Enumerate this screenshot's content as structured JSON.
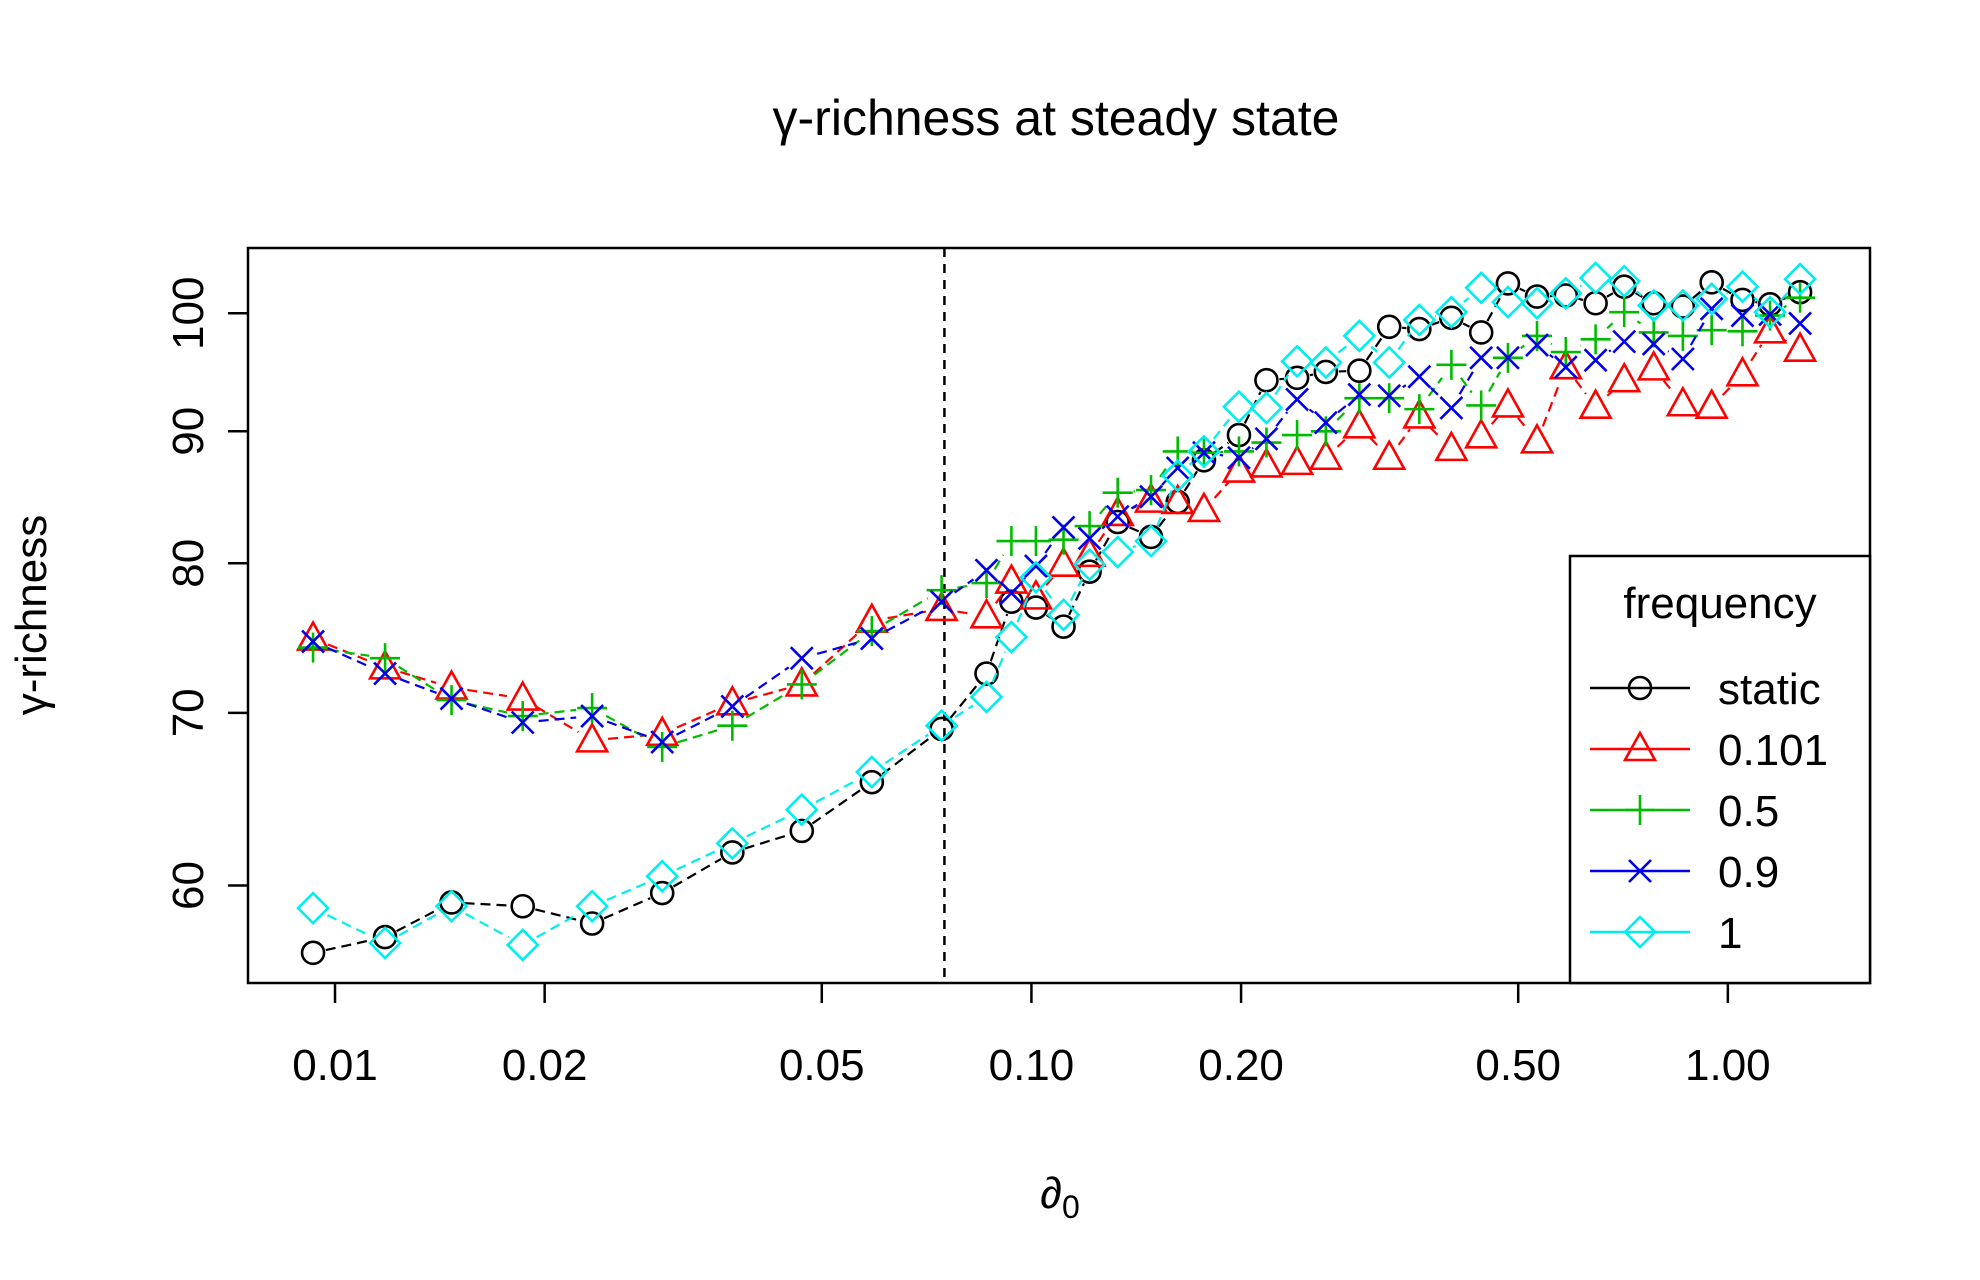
{
  "chart_data": {
    "type": "scatter",
    "title": "γ-richness at steady state",
    "xlabel": "∂",
    "xlabel_sub": "0",
    "ylabel": "γ-richness",
    "x_scale": "log",
    "y_scale": "log",
    "xlim": [
      0.0075,
      1.6
    ],
    "ylim": [
      55,
      106
    ],
    "x_ticks": [
      {
        "v": 0.01,
        "label": "0.01"
      },
      {
        "v": 0.02,
        "label": "0.02"
      },
      {
        "v": 0.05,
        "label": "0.05"
      },
      {
        "v": 0.1,
        "label": "0.10"
      },
      {
        "v": 0.2,
        "label": "0.20"
      },
      {
        "v": 0.5,
        "label": "0.50"
      },
      {
        "v": 1.0,
        "label": "1.00"
      }
    ],
    "y_ticks": [
      {
        "v": 60,
        "label": "60"
      },
      {
        "v": 70,
        "label": "70"
      },
      {
        "v": 80,
        "label": "80"
      },
      {
        "v": 90,
        "label": "90"
      },
      {
        "v": 100,
        "label": "100"
      }
    ],
    "vline_x": 0.075,
    "legend": {
      "title": "frequency",
      "position": "bottom-right"
    },
    "series": [
      {
        "name": "static",
        "color": "#000000",
        "marker": "circle",
        "points": [
          [
            0.0093,
            56.5
          ],
          [
            0.0118,
            57.3
          ],
          [
            0.0147,
            59.1
          ],
          [
            0.0186,
            58.9
          ],
          [
            0.0234,
            58.0
          ],
          [
            0.0295,
            59.6
          ],
          [
            0.0372,
            61.8
          ],
          [
            0.0468,
            63.0
          ],
          [
            0.059,
            65.8
          ],
          [
            0.0743,
            69.0
          ],
          [
            0.0862,
            72.5
          ],
          [
            0.0936,
            77.3
          ],
          [
            0.1015,
            76.9
          ],
          [
            0.1112,
            75.6
          ],
          [
            0.1212,
            79.4
          ],
          [
            0.133,
            83.0
          ],
          [
            0.1485,
            81.9
          ],
          [
            0.1622,
            84.5
          ],
          [
            0.1769,
            87.7
          ],
          [
            0.1986,
            89.7
          ],
          [
            0.2175,
            94.2
          ],
          [
            0.2407,
            94.4
          ],
          [
            0.2647,
            94.9
          ],
          [
            0.2957,
            95.0
          ],
          [
            0.3264,
            98.8
          ],
          [
            0.3606,
            98.6
          ],
          [
            0.4009,
            99.6
          ],
          [
            0.4424,
            98.3
          ],
          [
            0.4833,
            102.7
          ],
          [
            0.5321,
            101.5
          ],
          [
            0.5852,
            101.6
          ],
          [
            0.6458,
            100.9
          ],
          [
            0.7099,
            102.4
          ],
          [
            0.7826,
            100.9
          ],
          [
            0.8618,
            100.6
          ],
          [
            0.9479,
            102.8
          ],
          [
            1.0496,
            101.2
          ],
          [
            1.1498,
            100.8
          ],
          [
            1.2697,
            101.9
          ]
        ]
      },
      {
        "name": "0.101",
        "color": "#ff0000",
        "marker": "triangle",
        "points": [
          [
            0.0093,
            74.8
          ],
          [
            0.0118,
            72.9
          ],
          [
            0.0147,
            71.6
          ],
          [
            0.0186,
            70.9
          ],
          [
            0.0234,
            68.3
          ],
          [
            0.0295,
            68.7
          ],
          [
            0.0372,
            70.6
          ],
          [
            0.0468,
            71.8
          ],
          [
            0.059,
            76.0
          ],
          [
            0.0743,
            76.8
          ],
          [
            0.0862,
            76.3
          ],
          [
            0.0936,
            78.7
          ],
          [
            0.1015,
            77.6
          ],
          [
            0.1112,
            79.9
          ],
          [
            0.1212,
            80.6
          ],
          [
            0.133,
            83.6
          ],
          [
            0.1485,
            84.6
          ],
          [
            0.1622,
            84.5
          ],
          [
            0.1769,
            83.9
          ],
          [
            0.1986,
            86.9
          ],
          [
            0.2175,
            87.3
          ],
          [
            0.2407,
            87.5
          ],
          [
            0.2647,
            87.9
          ],
          [
            0.2957,
            90.4
          ],
          [
            0.3264,
            87.9
          ],
          [
            0.3606,
            91.2
          ],
          [
            0.4009,
            88.6
          ],
          [
            0.4424,
            89.6
          ],
          [
            0.4833,
            92.1
          ],
          [
            0.5321,
            89.2
          ],
          [
            0.5852,
            95.3
          ],
          [
            0.6458,
            92.0
          ],
          [
            0.7099,
            94.2
          ],
          [
            0.7826,
            95.2
          ],
          [
            0.8618,
            92.2
          ],
          [
            0.9479,
            92.0
          ],
          [
            1.0496,
            94.7
          ],
          [
            1.1498,
            98.4
          ],
          [
            1.2697,
            96.8
          ]
        ]
      },
      {
        "name": "0.5",
        "color": "#00bb00",
        "marker": "plus",
        "points": [
          [
            0.0093,
            74.2
          ],
          [
            0.0118,
            73.5
          ],
          [
            0.0147,
            70.8
          ],
          [
            0.0186,
            69.8
          ],
          [
            0.0234,
            70.3
          ],
          [
            0.0295,
            67.9
          ],
          [
            0.0372,
            69.2
          ],
          [
            0.0468,
            71.8
          ],
          [
            0.059,
            75.3
          ],
          [
            0.0743,
            78.1
          ],
          [
            0.0862,
            78.6
          ],
          [
            0.0936,
            81.6
          ],
          [
            0.1015,
            81.6
          ],
          [
            0.1112,
            81.7
          ],
          [
            0.1212,
            82.7
          ],
          [
            0.133,
            85.2
          ],
          [
            0.1485,
            85.4
          ],
          [
            0.1622,
            88.4
          ],
          [
            0.1769,
            88.3
          ],
          [
            0.1986,
            88.4
          ],
          [
            0.2175,
            89.1
          ],
          [
            0.2407,
            89.7
          ],
          [
            0.2647,
            90.0
          ],
          [
            0.2957,
            92.7
          ],
          [
            0.3264,
            92.7
          ],
          [
            0.3606,
            91.8
          ],
          [
            0.4009,
            95.5
          ],
          [
            0.4424,
            92.1
          ],
          [
            0.4833,
            96.1
          ],
          [
            0.5321,
            98.0
          ],
          [
            0.5852,
            96.6
          ],
          [
            0.6458,
            97.7
          ],
          [
            0.7099,
            100.1
          ],
          [
            0.7826,
            98.3
          ],
          [
            0.8618,
            98.0
          ],
          [
            0.9479,
            98.5
          ],
          [
            1.0496,
            98.4
          ],
          [
            1.1498,
            99.8
          ],
          [
            1.2697,
            101.4
          ]
        ]
      },
      {
        "name": "0.9",
        "color": "#0000ee",
        "marker": "cross",
        "points": [
          [
            0.0093,
            74.6
          ],
          [
            0.0118,
            72.5
          ],
          [
            0.0147,
            70.9
          ],
          [
            0.0186,
            69.4
          ],
          [
            0.0234,
            69.8
          ],
          [
            0.0295,
            68.2
          ],
          [
            0.0372,
            70.4
          ],
          [
            0.0468,
            73.5
          ],
          [
            0.059,
            74.8
          ],
          [
            0.0743,
            77.3
          ],
          [
            0.0862,
            79.5
          ],
          [
            0.0936,
            77.9
          ],
          [
            0.1015,
            79.8
          ],
          [
            0.1112,
            82.6
          ],
          [
            0.1212,
            81.8
          ],
          [
            0.133,
            83.4
          ],
          [
            0.1485,
            84.9
          ],
          [
            0.1622,
            87.1
          ],
          [
            0.1769,
            88.3
          ],
          [
            0.1986,
            87.9
          ],
          [
            0.2175,
            89.4
          ],
          [
            0.2407,
            92.6
          ],
          [
            0.2647,
            90.7
          ],
          [
            0.2957,
            93.0
          ],
          [
            0.3264,
            92.9
          ],
          [
            0.3606,
            94.5
          ],
          [
            0.4009,
            91.9
          ],
          [
            0.4424,
            96.1
          ],
          [
            0.4833,
            96.1
          ],
          [
            0.5321,
            97.2
          ],
          [
            0.5852,
            95.3
          ],
          [
            0.6458,
            95.9
          ],
          [
            0.7099,
            97.5
          ],
          [
            0.7826,
            97.3
          ],
          [
            0.8618,
            96.0
          ],
          [
            0.9479,
            100.4
          ],
          [
            1.0496,
            99.8
          ],
          [
            1.1498,
            99.9
          ],
          [
            1.2697,
            99.1
          ]
        ]
      },
      {
        "name": "1",
        "color": "#00eeee",
        "marker": "diamond",
        "points": [
          [
            0.0093,
            58.8
          ],
          [
            0.0118,
            57.0
          ],
          [
            0.0147,
            58.9
          ],
          [
            0.0186,
            56.9
          ],
          [
            0.0234,
            58.9
          ],
          [
            0.0295,
            60.5
          ],
          [
            0.0372,
            62.3
          ],
          [
            0.0468,
            64.2
          ],
          [
            0.059,
            66.4
          ],
          [
            0.0743,
            69.2
          ],
          [
            0.0862,
            71.0
          ],
          [
            0.0936,
            74.9
          ],
          [
            0.1015,
            79.0
          ],
          [
            0.1112,
            76.4
          ],
          [
            0.1212,
            79.9
          ],
          [
            0.133,
            80.8
          ],
          [
            0.1485,
            81.6
          ],
          [
            0.1622,
            86.5
          ],
          [
            0.1769,
            88.4
          ],
          [
            0.1986,
            92.0
          ],
          [
            0.2175,
            91.9
          ],
          [
            0.2407,
            95.8
          ],
          [
            0.2647,
            95.7
          ],
          [
            0.2957,
            98.0
          ],
          [
            0.3264,
            95.7
          ],
          [
            0.3606,
            99.4
          ],
          [
            0.4009,
            100.1
          ],
          [
            0.4424,
            102.3
          ],
          [
            0.4833,
            101.0
          ],
          [
            0.5321,
            100.9
          ],
          [
            0.5852,
            101.8
          ],
          [
            0.6458,
            103.2
          ],
          [
            0.7099,
            102.9
          ],
          [
            0.7826,
            100.7
          ],
          [
            0.8618,
            100.7
          ],
          [
            0.9479,
            101.3
          ],
          [
            1.0496,
            102.4
          ],
          [
            1.1498,
            100.1
          ],
          [
            1.2697,
            103.1
          ]
        ]
      }
    ]
  }
}
